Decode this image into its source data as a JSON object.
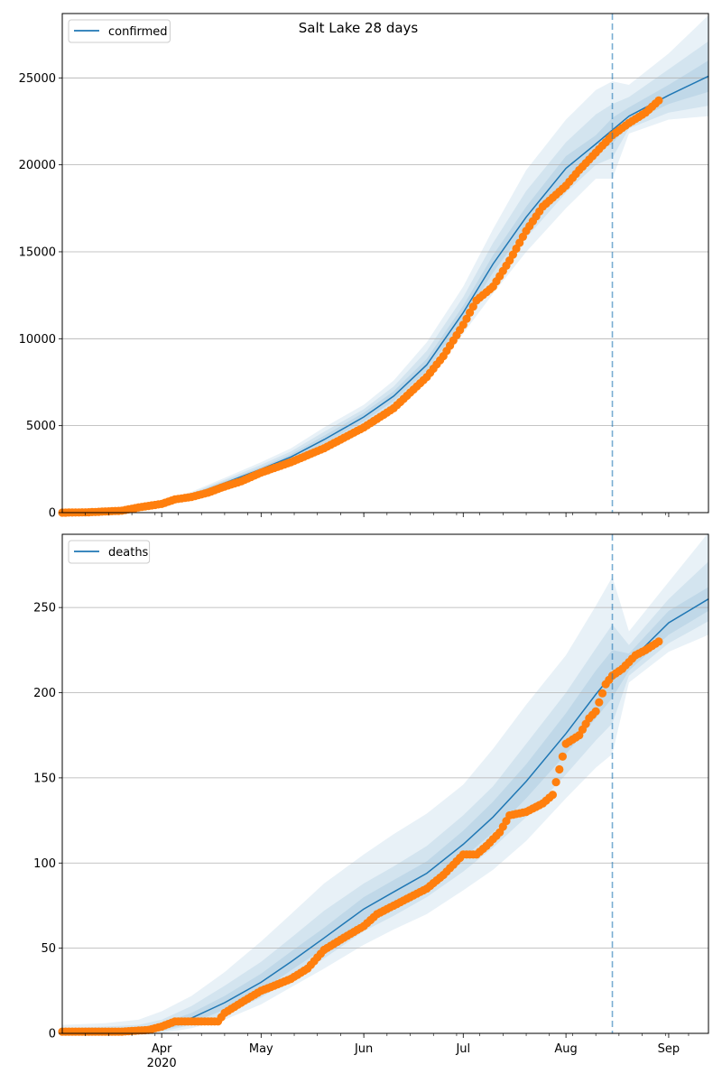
{
  "figure": {
    "title": "Salt Lake 28 days"
  },
  "colors": {
    "model_line": "#1f77b4",
    "band": "#1f77b4",
    "observed": "#ff7f0e",
    "grid": "#b0b0b0",
    "cutoff_line": "#1f77b4"
  },
  "x_axis": {
    "start": "2020-03-02",
    "end": "2020-09-13",
    "cutoff_date": "2020-08-15",
    "month_ticks": [
      {
        "date": "2020-04-01",
        "label": "Apr"
      },
      {
        "date": "2020-05-01",
        "label": "May"
      },
      {
        "date": "2020-06-01",
        "label": "Jun"
      },
      {
        "date": "2020-07-01",
        "label": "Jul"
      },
      {
        "date": "2020-08-01",
        "label": "Aug"
      },
      {
        "date": "2020-09-01",
        "label": "Sep"
      }
    ],
    "year_label": "2020"
  },
  "chart_data": [
    {
      "type": "line",
      "legend": "confirmed",
      "legend_position": "top-left",
      "grid": "y",
      "ylim": [
        0,
        28700
      ],
      "yticks": [
        0,
        5000,
        10000,
        15000,
        20000,
        25000
      ],
      "ytick_labels": [
        "0",
        "5000",
        "10000",
        "15000",
        "20000",
        "25000"
      ],
      "model": {
        "x": [
          "2020-03-02",
          "2020-03-15",
          "2020-03-25",
          "2020-04-01",
          "2020-04-10",
          "2020-04-20",
          "2020-05-01",
          "2020-05-10",
          "2020-05-20",
          "2020-06-01",
          "2020-06-10",
          "2020-06-20",
          "2020-07-01",
          "2020-07-10",
          "2020-07-20",
          "2020-08-01",
          "2020-08-10",
          "2020-08-15",
          "2020-08-20",
          "2020-09-01",
          "2020-09-13"
        ],
        "median": [
          0,
          40,
          200,
          500,
          1000,
          1700,
          2500,
          3200,
          4200,
          5500,
          6700,
          8500,
          11500,
          14300,
          17000,
          19800,
          21200,
          22000,
          22800,
          24000,
          25100
        ],
        "bands": [
          {
            "lower": [
              0,
              0,
              100,
              400,
              850,
              1450,
              2150,
              2800,
              3600,
              4800,
              5900,
              7500,
              10300,
              12600,
              15000,
              17500,
              19200,
              19200,
              21800,
              22600,
              22800
            ],
            "upper": [
              0,
              80,
              300,
              650,
              1200,
              2000,
              2900,
              3700,
              4900,
              6200,
              7600,
              9800,
              13000,
              16300,
              19700,
              22600,
              24300,
              24800,
              24600,
              26400,
              28600
            ]
          },
          {
            "lower": [
              0,
              10,
              130,
              430,
              890,
              1520,
              2250,
              2900,
              3780,
              5000,
              6150,
              7850,
              10700,
              13200,
              15800,
              18400,
              20000,
              20400,
              22100,
              23000,
              23400
            ],
            "upper": [
              0,
              60,
              260,
              590,
              1130,
              1890,
              2750,
              3520,
              4650,
              5950,
              7250,
              9300,
              12400,
              15500,
              18500,
              21300,
              22900,
              23500,
              23900,
              25500,
              27100
            ]
          },
          {
            "lower": [
              0,
              20,
              160,
              460,
              930,
              1600,
              2380,
              3040,
              3980,
              5250,
              6420,
              8150,
              11100,
              13800,
              16400,
              19100,
              20700,
              21200,
              22400,
              23500,
              24200
            ],
            "upper": [
              0,
              50,
              230,
              550,
              1070,
              1800,
              2620,
              3360,
              4420,
              5750,
              6980,
              8850,
              11900,
              14800,
              17600,
              20500,
              21700,
              22700,
              23300,
              24600,
              26000
            ]
          }
        ]
      },
      "observed": {
        "x": [
          "2020-03-02",
          "2020-03-10",
          "2020-03-20",
          "2020-03-25",
          "2020-04-01",
          "2020-04-05",
          "2020-04-10",
          "2020-04-15",
          "2020-04-20",
          "2020-04-25",
          "2020-05-01",
          "2020-05-10",
          "2020-05-20",
          "2020-05-25",
          "2020-06-01",
          "2020-06-10",
          "2020-06-20",
          "2020-06-25",
          "2020-07-01",
          "2020-07-05",
          "2020-07-10",
          "2020-07-15",
          "2020-07-20",
          "2020-07-25",
          "2020-08-01",
          "2020-08-05",
          "2020-08-10",
          "2020-08-15",
          "2020-08-20",
          "2020-08-25",
          "2020-08-29"
        ],
        "y": [
          0,
          20,
          110,
          300,
          500,
          760,
          900,
          1150,
          1500,
          1800,
          2300,
          2900,
          3700,
          4200,
          4900,
          6000,
          7800,
          9000,
          10800,
          12200,
          13000,
          14500,
          16200,
          17600,
          18800,
          19700,
          20700,
          21700,
          22400,
          23000,
          23700
        ]
      }
    },
    {
      "type": "line",
      "legend": "deaths",
      "legend_position": "top-left",
      "grid": "y",
      "ylim": [
        0,
        293
      ],
      "yticks": [
        0,
        50,
        100,
        150,
        200,
        250
      ],
      "ytick_labels": [
        "0",
        "50",
        "100",
        "150",
        "200",
        "250"
      ],
      "model": {
        "x": [
          "2020-03-02",
          "2020-03-15",
          "2020-03-25",
          "2020-04-01",
          "2020-04-10",
          "2020-04-20",
          "2020-05-01",
          "2020-05-10",
          "2020-05-20",
          "2020-06-01",
          "2020-06-10",
          "2020-06-20",
          "2020-07-01",
          "2020-07-10",
          "2020-07-20",
          "2020-08-01",
          "2020-08-10",
          "2020-08-15",
          "2020-08-20",
          "2020-09-01",
          "2020-09-13"
        ],
        "median": [
          0,
          0.5,
          1.5,
          4,
          9,
          18,
          30,
          42,
          56,
          73,
          83,
          94,
          111,
          127,
          148,
          176,
          199,
          211,
          218,
          241,
          255
        ],
        "bands": [
          {
            "lower": [
              0,
              0,
              0,
              0,
              3,
              8,
              17,
              27,
              38,
              52,
              61,
              70,
              84,
              96,
              113,
              138,
              156,
              164,
              206,
              224,
              234
            ],
            "upper": [
              5,
              6,
              8,
              13,
              22,
              36,
              54,
              70,
              88,
              105,
              117,
              129,
              146,
              167,
              193,
              222,
              251,
              268,
              236,
              265,
              294
            ]
          },
          {
            "lower": [
              0,
              0,
              0,
              1,
              5,
              11,
              21,
              32,
              44,
              60,
              69,
              80,
              95,
              109,
              127,
              152,
              172,
              182,
              210,
              229,
              242
            ],
            "upper": [
              3,
              4,
              5,
              8,
              16,
              28,
              42,
              56,
              72,
              88,
              98,
              110,
              128,
              145,
              170,
              200,
              226,
              240,
              228,
              255,
              277
            ]
          },
          {
            "lower": [
              0,
              0,
              0.5,
              2,
              6,
              14,
              25,
              37,
              50,
              66,
              76,
              87,
              103,
              118,
              138,
              164,
              185,
              197,
              213,
              234,
              248
            ],
            "upper": [
              1,
              2,
              3,
              6,
              12,
              22,
              35,
              48,
              62,
              80,
              90,
              101,
              119,
              136,
              158,
              188,
              213,
              225,
              223,
              248,
              262
            ]
          }
        ]
      },
      "observed": {
        "x": [
          "2020-03-02",
          "2020-03-20",
          "2020-03-28",
          "2020-04-01",
          "2020-04-05",
          "2020-04-10",
          "2020-04-18",
          "2020-04-20",
          "2020-04-25",
          "2020-05-01",
          "2020-05-05",
          "2020-05-10",
          "2020-05-15",
          "2020-05-20",
          "2020-05-25",
          "2020-06-01",
          "2020-06-05",
          "2020-06-10",
          "2020-06-15",
          "2020-06-20",
          "2020-06-25",
          "2020-07-01",
          "2020-07-05",
          "2020-07-08",
          "2020-07-12",
          "2020-07-15",
          "2020-07-20",
          "2020-07-25",
          "2020-07-28",
          "2020-08-01",
          "2020-08-05",
          "2020-08-08",
          "2020-08-10",
          "2020-08-13",
          "2020-08-15",
          "2020-08-18",
          "2020-08-22",
          "2020-08-25",
          "2020-08-29"
        ],
        "y": [
          1,
          1,
          2,
          4,
          7,
          7,
          7,
          12,
          18,
          25,
          28,
          32,
          38,
          49,
          55,
          63,
          70,
          75,
          80,
          85,
          93,
          105,
          105,
          110,
          118,
          128,
          130,
          135,
          140,
          170,
          175,
          185,
          189,
          205,
          210,
          214,
          222,
          225,
          230
        ]
      }
    }
  ]
}
